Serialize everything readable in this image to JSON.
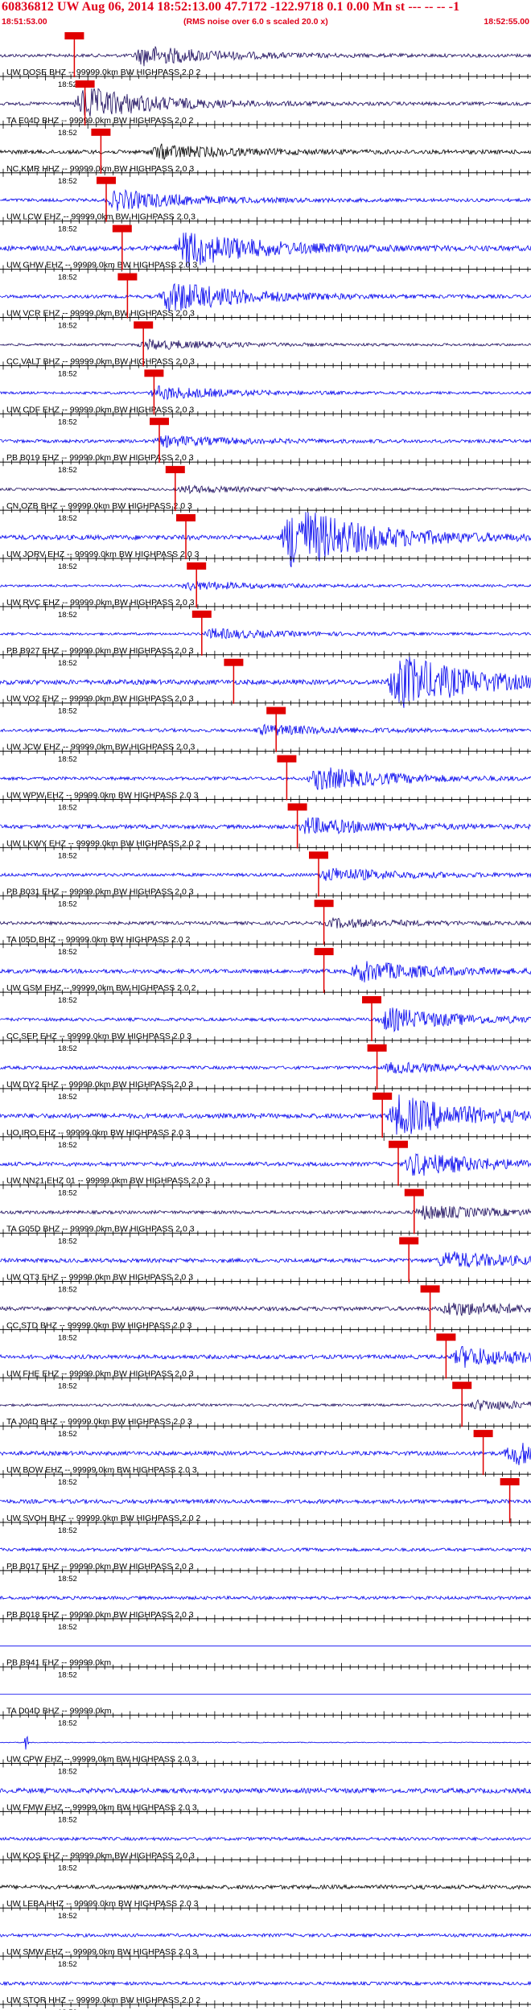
{
  "header": {
    "title": "60836812 UW Aug 06, 2014 18:52:13.00   47.7172 -122.9718  0.1 0.00 Mn st --- -- --  -1",
    "start_time": "18:51:53.00",
    "note": "(RMS noise over 6.0 s scaled 20.0 x)",
    "end_time": "18:52:55.00"
  },
  "tick_time_label": "18:52",
  "colors": {
    "header_red": "#e0001a",
    "trace_blue": "#0000ee",
    "trace_navy": "#1a0a5c",
    "trace_black": "#000000",
    "pick_red": "#e00000"
  },
  "traces": [
    {
      "label": "UW DOSE BHZ -- 99999.0km BW  HIGHPASS  2.0  2",
      "color": "navy",
      "noise": 2.0,
      "peak": 12,
      "event": 0.27,
      "pick": 0.14
    },
    {
      "label": "TA E04D BHZ -- 99999.0km BW  HIGHPASS  2.0  2",
      "color": "navy",
      "noise": 2.0,
      "peak": 20,
      "event": 0.16,
      "pick": 0.16
    },
    {
      "label": "NC KMR HHZ -- 99999.0km BW  HIGHPASS  2.0  3",
      "color": "black",
      "noise": 2.5,
      "peak": 8,
      "event": 0.3,
      "pick": 0.19
    },
    {
      "label": "UW LCW EHZ -- 99999.0km BW  HIGHPASS  2.0  3",
      "color": "blue",
      "noise": 2.0,
      "peak": 12,
      "event": 0.22,
      "pick": 0.2
    },
    {
      "label": "UW GHW EHZ -- 99999.0km BW  HIGHPASS  2.0  3",
      "color": "blue",
      "noise": 3.0,
      "peak": 22,
      "event": 0.35,
      "pick": 0.23
    },
    {
      "label": "UW VCR EHZ -- 99999.0km BW  HIGHPASS  2.0  3",
      "color": "blue",
      "noise": 2.0,
      "peak": 20,
      "event": 0.32,
      "pick": 0.24
    },
    {
      "label": "CC VALT BHZ -- 99999.0km BW  HIGHPASS  2.0  3",
      "color": "navy",
      "noise": 1.5,
      "peak": 6,
      "event": 0.28,
      "pick": 0.27
    },
    {
      "label": "UW CDF EHZ -- 99999.0km BW  HIGHPASS  2.0  3",
      "color": "blue",
      "noise": 1.5,
      "peak": 8,
      "event": 0.3,
      "pick": 0.29
    },
    {
      "label": "PB B019 EHZ -- 99999.0km BW  HIGHPASS  2.0  3",
      "color": "blue",
      "noise": 2.0,
      "peak": 6,
      "event": 0.31,
      "pick": 0.3
    },
    {
      "label": "CN OZB BHZ -- 99999.0km BW  HIGHPASS  2.0  3",
      "color": "navy",
      "noise": 1.5,
      "peak": 4,
      "event": 0.35,
      "pick": 0.33
    },
    {
      "label": "UW JORV EHZ -- 99999.0km BW  HIGHPASS  2.0  3",
      "color": "blue",
      "noise": 3.0,
      "peak": 40,
      "event": 0.55,
      "pick": 0.35
    },
    {
      "label": "UW RVC EHZ -- 99999.0km BW  HIGHPASS  2.0  3",
      "color": "blue",
      "noise": 1.5,
      "peak": 5,
      "event": 0.36,
      "pick": 0.37
    },
    {
      "label": "PB B927 EHZ -- 99999.0km BW  HIGHPASS  2.0  3",
      "color": "blue",
      "noise": 1.5,
      "peak": 6,
      "event": 0.4,
      "pick": 0.38
    },
    {
      "label": "UW VO2 EHZ -- 99999.0km BW  HIGHPASS  2.0  3",
      "color": "blue",
      "noise": 3.0,
      "peak": 34,
      "event": 0.75,
      "pick": 0.44
    },
    {
      "label": "UW JCW EHZ -- 99999.0km BW  HIGHPASS  2.0  3",
      "color": "blue",
      "noise": 2.0,
      "peak": 6,
      "event": 0.5,
      "pick": 0.52
    },
    {
      "label": "UW WPW EHZ -- 99999.0km BW  HIGHPASS  2.0  3",
      "color": "blue",
      "noise": 2.0,
      "peak": 14,
      "event": 0.6,
      "pick": 0.54
    },
    {
      "label": "UW LKWY EHZ -- 99999.0km BW  HIGHPASS  2.0  2",
      "color": "blue",
      "noise": 2.5,
      "peak": 10,
      "event": 0.58,
      "pick": 0.56
    },
    {
      "label": "PB B031 EHZ -- 99999.0km BW  HIGHPASS  2.0  3",
      "color": "blue",
      "noise": 2.0,
      "peak": 8,
      "event": 0.62,
      "pick": 0.6
    },
    {
      "label": "TA I05D BHZ -- 99999.0km BW  HIGHPASS  2.0  2",
      "color": "navy",
      "noise": 2.0,
      "peak": 5,
      "event": 0.63,
      "pick": 0.61
    },
    {
      "label": "UW GSM EHZ -- 99999.0km BW  HIGHPASS  2.0  2",
      "color": "blue",
      "noise": 2.5,
      "peak": 12,
      "event": 0.68,
      "pick": 0.61
    },
    {
      "label": "CC SEP EHZ -- 99999.0km BW  HIGHPASS  2.0  3",
      "color": "blue",
      "noise": 2.0,
      "peak": 14,
      "event": 0.73,
      "pick": 0.7
    },
    {
      "label": "UW DY2 EHZ -- 99999.0km BW  HIGHPASS  2.0  3",
      "color": "blue",
      "noise": 2.0,
      "peak": 6,
      "event": 0.74,
      "pick": 0.71
    },
    {
      "label": "UO IRO EHZ -- 99999.0km BW  HIGHPASS  2.0  3",
      "color": "blue",
      "noise": 3.0,
      "peak": 24,
      "event": 0.75,
      "pick": 0.72
    },
    {
      "label": "UW NN21 EHZ 01 -- 99999.0km BW  HIGHPASS  2.0  3",
      "color": "blue",
      "noise": 2.5,
      "peak": 14,
      "event": 0.78,
      "pick": 0.75
    },
    {
      "label": "TA G05D BHZ -- 99999.0km BW  HIGHPASS  2.0  3",
      "color": "navy",
      "noise": 2.0,
      "peak": 8,
      "event": 0.8,
      "pick": 0.78
    },
    {
      "label": "UW OT3 EHZ -- 99999.0km BW  HIGHPASS  2.0  3",
      "color": "blue",
      "noise": 2.5,
      "peak": 10,
      "event": 0.84,
      "pick": 0.77
    },
    {
      "label": "CC STD BHZ -- 99999.0km BW  HIGHPASS  2.0  3",
      "color": "navy",
      "noise": 2.5,
      "peak": 8,
      "event": 0.85,
      "pick": 0.81
    },
    {
      "label": "UW FHE EHZ -- 99999.0km BW  HIGHPASS  2.0  3",
      "color": "blue",
      "noise": 2.5,
      "peak": 12,
      "event": 0.87,
      "pick": 0.84
    },
    {
      "label": "TA J04D BHZ -- 99999.0km BW  HIGHPASS  2.0  3",
      "color": "navy",
      "noise": 1.5,
      "peak": 6,
      "event": 0.9,
      "pick": 0.87
    },
    {
      "label": "UW BOW EHZ -- 99999.0km BW  HIGHPASS  2.0  3",
      "color": "blue",
      "noise": 2.5,
      "peak": 14,
      "event": 0.97,
      "pick": 0.91
    },
    {
      "label": "UW SVOH BHZ -- 99999.0km BW  HIGHPASS  2.0  2",
      "color": "blue",
      "noise": 2.5,
      "peak": 0,
      "event": 0,
      "pick": 0.96
    },
    {
      "label": "PB B017 EHZ -- 99999.0km BW  HIGHPASS  2.0  3",
      "color": "blue",
      "noise": 2.0,
      "peak": 0,
      "event": 0,
      "pick": null
    },
    {
      "label": "PB B018 EHZ -- 99999.0km BW  HIGHPASS  2.0  3",
      "color": "blue",
      "noise": 2.0,
      "peak": 0,
      "event": 0,
      "pick": null
    },
    {
      "label": "PB B941 EHZ -- 99999.0km",
      "color": "blue",
      "noise": 0.0,
      "peak": 0,
      "event": 0,
      "pick": null
    },
    {
      "label": "TA D04D BHZ -- 99999.0km",
      "color": "blue",
      "noise": 0.0,
      "peak": 0,
      "event": 0,
      "pick": null
    },
    {
      "label": "UW CPW EHZ -- 99999.0km BW  HIGHPASS  2.0  3",
      "color": "blue",
      "noise": 0.5,
      "peak": 0,
      "event": 0,
      "pick": null,
      "spike": 0.05
    },
    {
      "label": "UW FMW EHZ -- 99999.0km BW  HIGHPASS  2.0  3",
      "color": "blue",
      "noise": 3.0,
      "peak": 0,
      "event": 0,
      "pick": null
    },
    {
      "label": "UW KOS EHZ -- 99999.0km BW  HIGHPASS  2.0  3",
      "color": "blue",
      "noise": 2.0,
      "peak": 0,
      "event": 0,
      "pick": null
    },
    {
      "label": "UW LEBA HHZ -- 99999.0km BW  HIGHPASS  2.0  3",
      "color": "black",
      "noise": 2.5,
      "peak": 0,
      "event": 0,
      "pick": null
    },
    {
      "label": "UW SMW EHZ -- 99999.0km BW  HIGHPASS  2.0  3",
      "color": "blue",
      "noise": 2.0,
      "peak": 0,
      "event": 0,
      "pick": null
    },
    {
      "label": "UW STOR HHZ -- 99999.0km BW  HIGHPASS  2.0  2",
      "color": "blue",
      "noise": 2.0,
      "peak": 0,
      "event": 0,
      "pick": null
    }
  ]
}
